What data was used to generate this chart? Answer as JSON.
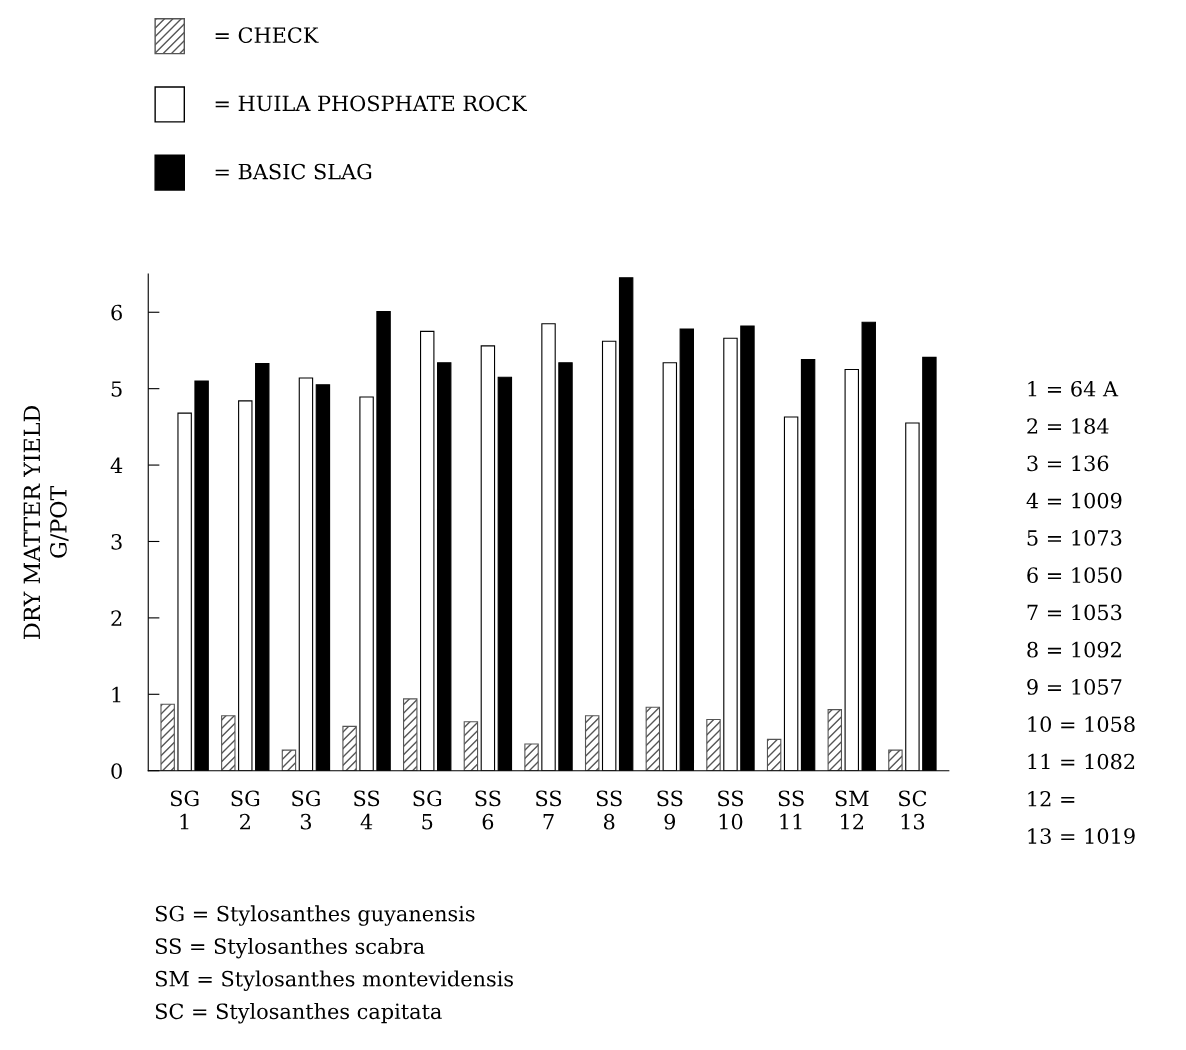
{
  "chart_data": {
    "type": "bar",
    "categories": [
      "SG\n1",
      "SG\n2",
      "SG\n3",
      "SS\n4",
      "SG\n5",
      "SS\n6",
      "SS\n7",
      "SS\n8",
      "SS\n9",
      "SS\n10",
      "SS\n11",
      "SM\n12",
      "SC\n13"
    ],
    "series": [
      {
        "name": "= CHECK",
        "color": "#555555",
        "values": [
          0.87,
          0.72,
          0.27,
          0.58,
          0.94,
          0.64,
          0.35,
          0.72,
          0.83,
          0.67,
          0.41,
          0.8,
          0.27
        ]
      },
      {
        "name": "= HUILA PHOSPHATE ROCK",
        "color": "#ffffff",
        "values": [
          4.68,
          4.84,
          5.14,
          4.89,
          5.75,
          5.56,
          5.85,
          5.62,
          5.34,
          5.66,
          4.63,
          5.25,
          4.55
        ]
      },
      {
        "name": "= BASIC SLAG",
        "color": "#000000",
        "values": [
          5.1,
          5.33,
          5.05,
          6.01,
          5.34,
          5.15,
          5.34,
          6.45,
          5.78,
          5.82,
          5.38,
          5.87,
          5.41
        ]
      }
    ],
    "ylabel": "DRY MATTER YIELD\nG/POT",
    "ylim": [
      0,
      6.5
    ],
    "yticks": [
      0,
      1,
      2,
      3,
      4,
      5,
      6
    ],
    "grid": false,
    "legend": "top left",
    "annotations": [
      "1 = 64 A",
      "2 = 184",
      "3 = 136",
      "4 = 1009",
      "5 = 1073",
      "6 = 1050",
      "7 = 1053",
      "8 = 1092",
      "9 = 1057",
      "10 = 1058",
      "11 = 1082",
      "12 =",
      "13 = 1019",
      "SG = Stylosanthes guyanensis",
      "SS = Stylosanthes scabra",
      "SM = Stylosanthes montevidensis",
      "SC = Stylosanthes capitata"
    ]
  }
}
